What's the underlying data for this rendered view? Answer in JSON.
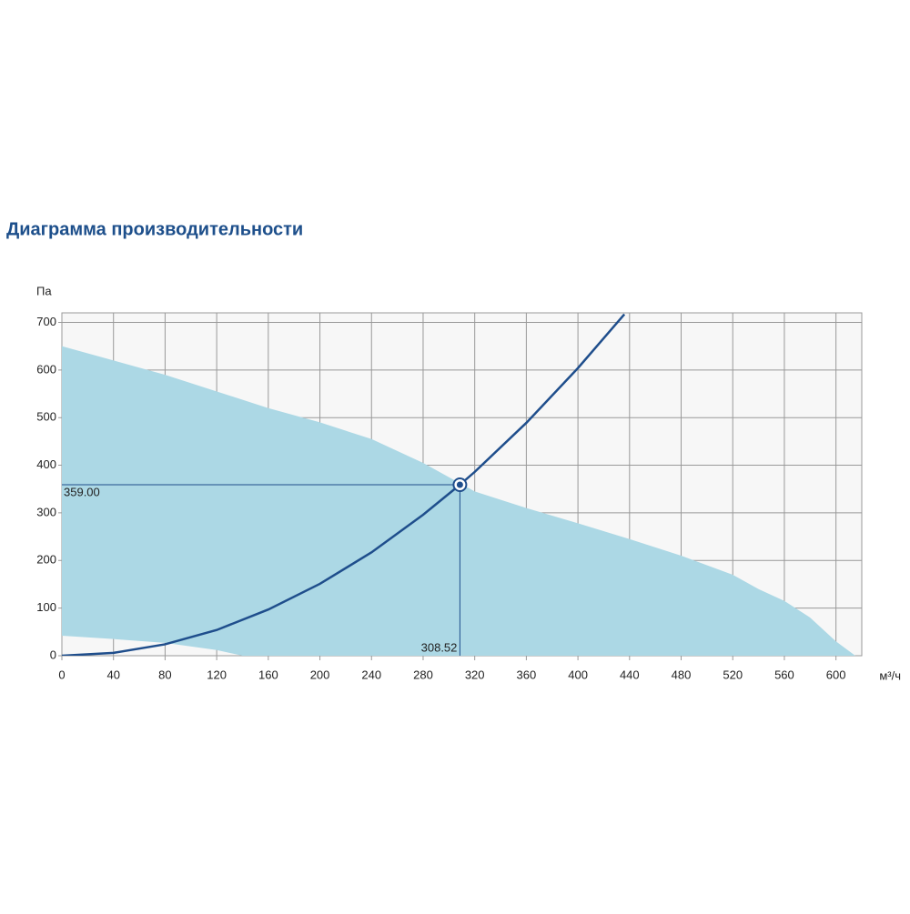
{
  "chart_data": {
    "type": "line",
    "title": "Диаграмма производительности",
    "y_label": "Па",
    "x_label": "м³/ч",
    "xlim": [
      0,
      620
    ],
    "ylim": [
      0,
      720
    ],
    "xticks": [
      0,
      40,
      80,
      120,
      160,
      200,
      240,
      280,
      320,
      360,
      400,
      440,
      480,
      520,
      560,
      600
    ],
    "yticks": [
      0,
      100,
      200,
      300,
      400,
      500,
      600,
      700
    ],
    "grid": true,
    "area": {
      "color": "#acd8e5",
      "x": [
        0,
        80,
        160,
        200,
        240,
        280,
        320,
        360,
        400,
        440,
        480,
        520,
        540,
        560,
        580,
        600,
        615
      ],
      "upper": [
        650,
        590,
        520,
        490,
        455,
        405,
        345,
        310,
        278,
        245,
        210,
        170,
        140,
        115,
        80,
        30,
        0
      ],
      "x_lower": [
        0,
        40,
        80,
        120,
        140
      ],
      "lower": [
        42,
        35,
        27,
        12,
        0
      ]
    },
    "series": [
      {
        "color": "#1f4e8c",
        "x": [
          0,
          40,
          80,
          120,
          160,
          200,
          240,
          280,
          308.52,
          320,
          360,
          400,
          436
        ],
        "values": [
          0,
          6,
          24,
          54,
          97,
          151,
          217,
          296,
          359,
          386,
          489,
          604,
          717
        ]
      }
    ],
    "operating_point": {
      "x": 308.52,
      "y": 359,
      "x_label": "308.52",
      "y_label": "359.00"
    }
  }
}
